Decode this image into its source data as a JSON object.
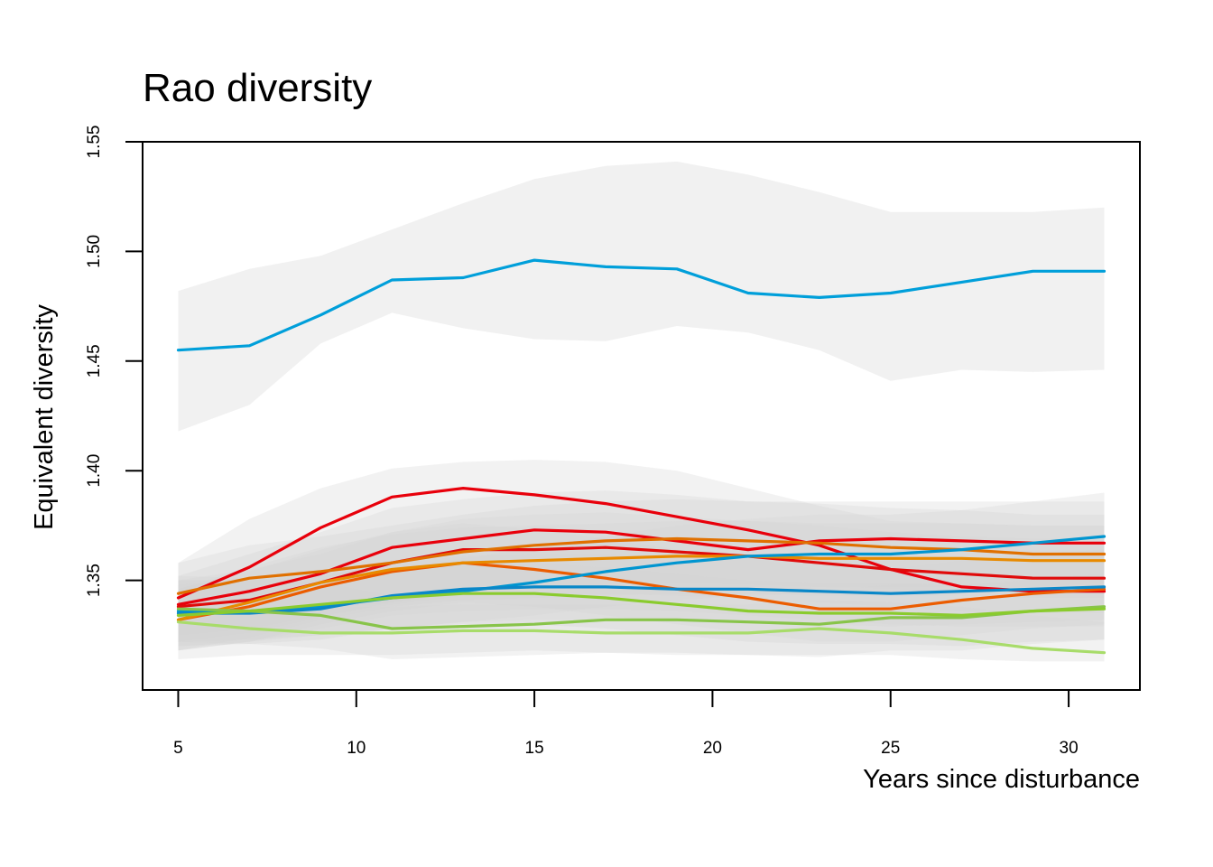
{
  "chart_data": {
    "type": "line",
    "title": "Rao diversity",
    "xlabel": "Years since disturbance",
    "ylabel": "Equivalent diversity",
    "xlim": [
      4,
      32
    ],
    "ylim": [
      1.3,
      1.55
    ],
    "x_ticks": [
      5,
      10,
      15,
      20,
      25,
      30
    ],
    "y_ticks": [
      "1.35",
      "1.40",
      "1.45",
      "1.50",
      "1.55"
    ],
    "grid": false,
    "legend": "none",
    "x": [
      5,
      7,
      9,
      11,
      13,
      15,
      17,
      19,
      21,
      23,
      25,
      27,
      29,
      31
    ],
    "series": [
      {
        "color": "#009FDA",
        "values": [
          1.455,
          1.457,
          1.471,
          1.487,
          1.488,
          1.496,
          1.493,
          1.492,
          1.481,
          1.479,
          1.481,
          1.486,
          1.491,
          1.491
        ],
        "band": {
          "lower": [
            1.418,
            1.43,
            1.458,
            1.472,
            1.465,
            1.46,
            1.459,
            1.466,
            1.463,
            1.455,
            1.441,
            1.446,
            1.445,
            1.446
          ],
          "upper": [
            1.482,
            1.492,
            1.498,
            1.51,
            1.522,
            1.533,
            1.539,
            1.541,
            1.535,
            1.527,
            1.518,
            1.518,
            1.518,
            1.52
          ]
        }
      },
      {
        "color": "#E8000B",
        "values": [
          1.342,
          1.356,
          1.374,
          1.388,
          1.392,
          1.389,
          1.385,
          1.379,
          1.373,
          1.366,
          1.355,
          1.347,
          1.345,
          1.345
        ],
        "band": {
          "lower": [
            1.318,
            1.322,
            1.328,
            1.334,
            1.336,
            1.337,
            1.337,
            1.336,
            1.334,
            1.332,
            1.33,
            1.329,
            1.329,
            1.329
          ],
          "upper": [
            1.358,
            1.378,
            1.392,
            1.401,
            1.404,
            1.405,
            1.404,
            1.4,
            1.392,
            1.384,
            1.377,
            1.376,
            1.375,
            1.375
          ]
        }
      },
      {
        "color": "#E8000B",
        "values": [
          1.339,
          1.345,
          1.353,
          1.365,
          1.369,
          1.373,
          1.372,
          1.368,
          1.364,
          1.368,
          1.369,
          1.368,
          1.367,
          1.367
        ],
        "band": {
          "lower": [
            1.322,
            1.326,
            1.333,
            1.34,
            1.344,
            1.347,
            1.347,
            1.346,
            1.346,
            1.347,
            1.347,
            1.347,
            1.347,
            1.347
          ],
          "upper": [
            1.352,
            1.362,
            1.372,
            1.383,
            1.387,
            1.39,
            1.391,
            1.389,
            1.386,
            1.386,
            1.386,
            1.386,
            1.386,
            1.386
          ]
        }
      },
      {
        "color": "#E00A0A",
        "values": [
          1.338,
          1.341,
          1.349,
          1.358,
          1.364,
          1.364,
          1.365,
          1.363,
          1.361,
          1.358,
          1.355,
          1.353,
          1.351,
          1.351
        ],
        "band": {
          "lower": [
            1.325,
            1.328,
            1.334,
            1.339,
            1.343,
            1.344,
            1.344,
            1.343,
            1.342,
            1.34,
            1.338,
            1.336,
            1.335,
            1.335
          ],
          "upper": [
            1.35,
            1.355,
            1.362,
            1.372,
            1.378,
            1.38,
            1.381,
            1.379,
            1.377,
            1.375,
            1.372,
            1.37,
            1.369,
            1.369
          ]
        }
      },
      {
        "color": "#EB5C00",
        "values": [
          1.332,
          1.338,
          1.347,
          1.354,
          1.358,
          1.355,
          1.351,
          1.346,
          1.342,
          1.337,
          1.337,
          1.341,
          1.344,
          1.346
        ],
        "band": {
          "lower": [
            1.318,
            1.322,
            1.33,
            1.336,
            1.34,
            1.338,
            1.334,
            1.33,
            1.326,
            1.322,
            1.322,
            1.325,
            1.328,
            1.33
          ],
          "upper": [
            1.346,
            1.354,
            1.364,
            1.372,
            1.376,
            1.373,
            1.369,
            1.364,
            1.36,
            1.355,
            1.355,
            1.359,
            1.362,
            1.364
          ]
        }
      },
      {
        "color": "#E07000",
        "values": [
          1.344,
          1.351,
          1.354,
          1.358,
          1.363,
          1.366,
          1.368,
          1.369,
          1.368,
          1.367,
          1.365,
          1.364,
          1.362,
          1.362
        ],
        "band": {
          "lower": [
            1.33,
            1.334,
            1.337,
            1.34,
            1.344,
            1.346,
            1.348,
            1.349,
            1.348,
            1.347,
            1.346,
            1.345,
            1.344,
            1.344
          ],
          "upper": [
            1.358,
            1.366,
            1.37,
            1.375,
            1.38,
            1.384,
            1.386,
            1.387,
            1.386,
            1.385,
            1.383,
            1.382,
            1.38,
            1.38
          ]
        }
      },
      {
        "color": "#E88A00",
        "values": [
          1.332,
          1.34,
          1.349,
          1.355,
          1.358,
          1.359,
          1.36,
          1.361,
          1.361,
          1.36,
          1.36,
          1.36,
          1.359,
          1.359
        ],
        "band": {
          "lower": [
            1.318,
            1.324,
            1.332,
            1.338,
            1.341,
            1.342,
            1.343,
            1.344,
            1.344,
            1.343,
            1.343,
            1.343,
            1.342,
            1.342
          ],
          "upper": [
            1.346,
            1.356,
            1.365,
            1.371,
            1.374,
            1.375,
            1.376,
            1.377,
            1.377,
            1.376,
            1.376,
            1.376,
            1.375,
            1.375
          ]
        }
      },
      {
        "color": "#0095D0",
        "values": [
          1.336,
          1.336,
          1.338,
          1.342,
          1.345,
          1.349,
          1.354,
          1.358,
          1.361,
          1.362,
          1.362,
          1.364,
          1.367,
          1.37
        ],
        "band": {
          "lower": [
            1.322,
            1.323,
            1.325,
            1.328,
            1.331,
            1.334,
            1.338,
            1.341,
            1.343,
            1.344,
            1.344,
            1.345,
            1.347,
            1.349
          ],
          "upper": [
            1.35,
            1.35,
            1.352,
            1.356,
            1.36,
            1.365,
            1.37,
            1.375,
            1.378,
            1.38,
            1.38,
            1.382,
            1.386,
            1.39
          ]
        }
      },
      {
        "color": "#0A87C8",
        "values": [
          1.335,
          1.335,
          1.337,
          1.343,
          1.346,
          1.347,
          1.347,
          1.346,
          1.346,
          1.345,
          1.344,
          1.345,
          1.346,
          1.347
        ],
        "band": {
          "lower": [
            1.32,
            1.321,
            1.323,
            1.328,
            1.331,
            1.332,
            1.332,
            1.331,
            1.331,
            1.33,
            1.329,
            1.33,
            1.331,
            1.332
          ],
          "upper": [
            1.35,
            1.35,
            1.352,
            1.358,
            1.361,
            1.362,
            1.362,
            1.361,
            1.361,
            1.36,
            1.359,
            1.36,
            1.361,
            1.362
          ]
        }
      },
      {
        "color": "#88C44A",
        "values": [
          1.337,
          1.336,
          1.334,
          1.328,
          1.329,
          1.33,
          1.332,
          1.332,
          1.331,
          1.33,
          1.333,
          1.333,
          1.336,
          1.338
        ],
        "band": {
          "lower": [
            1.322,
            1.321,
            1.319,
            1.314,
            1.315,
            1.316,
            1.317,
            1.317,
            1.316,
            1.315,
            1.318,
            1.318,
            1.321,
            1.323
          ],
          "upper": [
            1.352,
            1.351,
            1.349,
            1.343,
            1.344,
            1.345,
            1.347,
            1.347,
            1.346,
            1.345,
            1.348,
            1.348,
            1.351,
            1.353
          ]
        }
      },
      {
        "color": "#8ACB2E",
        "values": [
          1.334,
          1.336,
          1.339,
          1.342,
          1.344,
          1.344,
          1.342,
          1.339,
          1.336,
          1.335,
          1.335,
          1.334,
          1.336,
          1.337
        ],
        "band": {
          "lower": [
            1.32,
            1.322,
            1.325,
            1.328,
            1.33,
            1.33,
            1.328,
            1.325,
            1.322,
            1.321,
            1.321,
            1.32,
            1.322,
            1.323
          ],
          "upper": [
            1.348,
            1.35,
            1.353,
            1.356,
            1.358,
            1.358,
            1.356,
            1.353,
            1.35,
            1.349,
            1.349,
            1.348,
            1.35,
            1.351
          ]
        }
      },
      {
        "color": "#A8DC6A",
        "values": [
          1.331,
          1.328,
          1.326,
          1.326,
          1.327,
          1.327,
          1.326,
          1.326,
          1.326,
          1.328,
          1.326,
          1.323,
          1.319,
          1.317
        ],
        "band": {
          "lower": [
            1.314,
            1.316,
            1.316,
            1.316,
            1.317,
            1.318,
            1.317,
            1.316,
            1.316,
            1.316,
            1.316,
            1.314,
            1.313,
            1.313
          ],
          "upper": [
            1.346,
            1.342,
            1.338,
            1.338,
            1.339,
            1.339,
            1.339,
            1.339,
            1.339,
            1.341,
            1.34,
            1.338,
            1.334,
            1.331
          ]
        }
      }
    ]
  }
}
